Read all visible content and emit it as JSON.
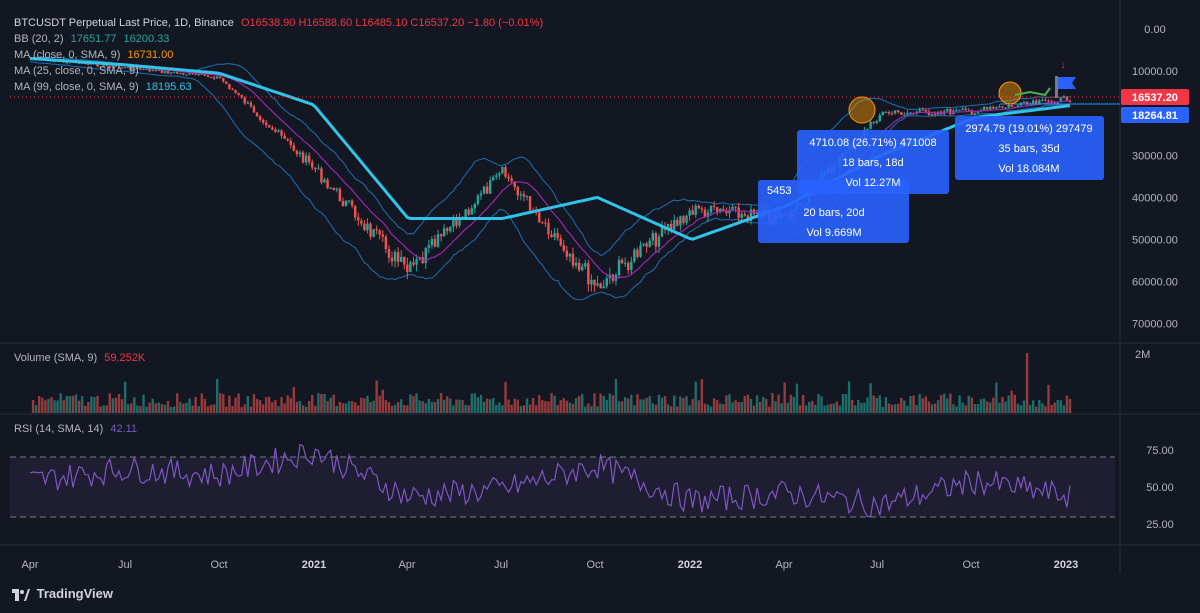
{
  "header": {
    "symbol": "BTCUSDT Perpetual Last Price, 1D, Binance",
    "ohlc": "O16538.90 H16588.60 L16485.10 C16537.20 −1.80 (−0.01%)"
  },
  "indicators": {
    "bb": {
      "label": "BB (20, 2)",
      "v1": "17651.77",
      "v2": "16200.33"
    },
    "ma9": {
      "label": "MA (close, 0, SMA, 9)",
      "v": "16731.00"
    },
    "ma25": {
      "label": "MA (25, close, 0, SMA, 9)"
    },
    "ma99": {
      "label": "MA (99, close, 0, SMA, 9)",
      "v": "18195.63"
    },
    "volume": {
      "label": "Volume (SMA, 9)",
      "v": "59.252K"
    },
    "rsi": {
      "label": "RSI (14, SMA, 14)",
      "v": "42.11"
    }
  },
  "price_scale": {
    "ticks": [
      "0.00",
      "10000.00",
      "20000.00",
      "30000.00",
      "40000.00",
      "50000.00",
      "60000.00",
      "70000.00"
    ],
    "last_price": "16537.20",
    "ma_price": "18264.81"
  },
  "volume_scale": {
    "max_label": "2M"
  },
  "rsi_scale": {
    "ticks": [
      "75.00",
      "50.00",
      "25.00"
    ]
  },
  "time_axis": {
    "labels": [
      "Apr",
      "Jul",
      "Oct",
      "2021",
      "Apr",
      "Jul",
      "Oct",
      "2022",
      "Apr",
      "Jul",
      "Oct",
      "2023"
    ]
  },
  "annotations": [
    {
      "line1": "4710.08 (26.71%) 471008",
      "line2": "18 bars, 18d",
      "line3": "Vol 12.27M"
    },
    {
      "line1": "5453",
      "line2": "20 bars, 20d",
      "line3": "Vol 9.669M"
    },
    {
      "line1": "2974.79 (19.01%) 297479",
      "line2": "35 bars, 35d",
      "line3": "Vol 18.084M"
    }
  ],
  "footer": {
    "brand": "TradingView"
  },
  "colors": {
    "background": "#131722",
    "up": "#26a69a",
    "down": "#ef5350",
    "ma99": "#2fc4e8",
    "ma25": "#9c27b0",
    "bb": "#2196f3",
    "rsi": "#7e57c2",
    "annotation": "#2962ff",
    "last_price": "#f23645"
  },
  "chart_data": [
    {
      "type": "line",
      "title": "BTCUSDT Perpetual Last Price, 1D, Binance",
      "axis": "inverted price scale",
      "ylim": [
        0,
        72000
      ],
      "x": [
        "2020-04",
        "2020-07",
        "2020-10",
        "2021-01",
        "2021-04",
        "2021-07",
        "2021-10",
        "2022-01",
        "2022-04",
        "2022-07",
        "2022-10",
        "2022-12"
      ],
      "series": [
        {
          "name": "Price",
          "values": [
            7000,
            9200,
            11500,
            33000,
            58000,
            34000,
            61000,
            43000,
            45000,
            20000,
            19500,
            16537
          ]
        },
        {
          "name": "MA (99, close, 0, SMA, 9)",
          "values": [
            7000,
            8500,
            10500,
            18000,
            45000,
            45000,
            40000,
            50000,
            42000,
            30000,
            21000,
            18195
          ]
        }
      ]
    },
    {
      "type": "bar",
      "title": "Volume (SMA, 9)",
      "ylim": [
        0,
        2000000
      ]
    },
    {
      "type": "line",
      "title": "RSI (14, SMA, 14)",
      "ylim": [
        15,
        95
      ],
      "x": [
        "2020-04",
        "2020-07",
        "2020-10",
        "2021-01",
        "2021-04",
        "2021-07",
        "2021-10",
        "2022-01",
        "2022-04",
        "2022-07",
        "2022-10",
        "2022-12"
      ],
      "series": [
        {
          "name": "RSI",
          "values": [
            55,
            65,
            60,
            80,
            42,
            48,
            68,
            38,
            45,
            35,
            55,
            42.11
          ]
        }
      ]
    }
  ]
}
